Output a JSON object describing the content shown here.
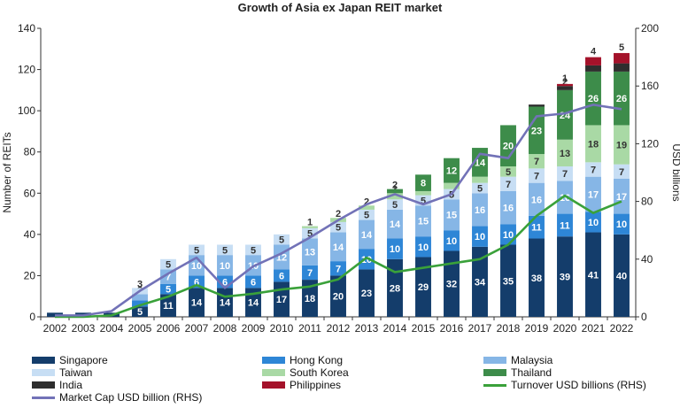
{
  "chart_data": {
    "type": "bar",
    "stacked": true,
    "title": "Growth of Asia ex Japan REIT market",
    "ylabel": "Number of REITs",
    "y2label": "USD billions",
    "ylim": [
      0,
      140
    ],
    "y2lim": [
      0,
      200
    ],
    "yticks": [
      0,
      20,
      40,
      60,
      80,
      100,
      120,
      140
    ],
    "y2ticks": [
      0,
      40,
      80,
      120,
      160,
      200
    ],
    "grid": false,
    "legend_position": "bottom",
    "categories": [
      "2002",
      "2003",
      "2004",
      "2005",
      "2006",
      "2007",
      "2008",
      "2009",
      "2010",
      "2011",
      "2012",
      "2013",
      "2014",
      "2015",
      "2016",
      "2017",
      "2018",
      "2019",
      "2020",
      "2021",
      "2022"
    ],
    "series": [
      {
        "name": "Singapore",
        "color": "#143d6b",
        "values": [
          2,
          2,
          2,
          5,
          11,
          14,
          14,
          14,
          17,
          18,
          20,
          23,
          28,
          29,
          32,
          34,
          35,
          38,
          39,
          41,
          40
        ],
        "labels": [
          "",
          "",
          "",
          "5",
          "11",
          "14",
          "14",
          "14",
          "17",
          "18",
          "20",
          "23",
          "28",
          "29",
          "32",
          "34",
          "35",
          "38",
          "39",
          "41",
          "40"
        ]
      },
      {
        "name": "Hong Kong",
        "color": "#2e86d6",
        "values": [
          0,
          0,
          0,
          3,
          5,
          6,
          6,
          6,
          6,
          7,
          7,
          10,
          10,
          10,
          10,
          10,
          10,
          11,
          11,
          10,
          10
        ],
        "labels": [
          "",
          "",
          "",
          "",
          "5",
          "6",
          "6",
          "6",
          "6",
          "7",
          "7",
          "10",
          "10",
          "10",
          "10",
          "10",
          "10",
          "11",
          "11",
          "10",
          "10"
        ]
      },
      {
        "name": "Malaysia",
        "color": "#86b6e6",
        "values": [
          0,
          0,
          0,
          3,
          7,
          10,
          10,
          10,
          12,
          13,
          14,
          14,
          14,
          15,
          15,
          16,
          16,
          16,
          16,
          17,
          17
        ],
        "labels": [
          "",
          "",
          "",
          "3",
          "7",
          "10",
          "10",
          "10",
          "12",
          "13",
          "14",
          "14",
          "14",
          "15",
          "15",
          "16",
          "16",
          "16",
          "16",
          "17",
          "17"
        ]
      },
      {
        "name": "Taiwan",
        "color": "#c7def4",
        "values": [
          0,
          0,
          0,
          3,
          5,
          5,
          5,
          5,
          5,
          5,
          5,
          5,
          5,
          5,
          5,
          5,
          7,
          7,
          7,
          7,
          7
        ],
        "labels": [
          "",
          "",
          "",
          "3",
          "5",
          "5",
          "5",
          "5",
          "5",
          "5",
          "5",
          "5",
          "5",
          "5",
          "5",
          "5",
          "7",
          "7",
          "7",
          "7",
          "7"
        ]
      },
      {
        "name": "South Korea",
        "color": "#a9d9a5",
        "values": [
          0,
          0,
          0,
          0,
          0,
          0,
          0,
          0,
          0,
          1,
          2,
          2,
          3,
          2,
          3,
          3,
          5,
          7,
          13,
          18,
          19
        ],
        "labels": [
          "",
          "",
          "",
          "",
          "",
          "",
          "",
          "",
          "",
          "1",
          "2",
          "2",
          "3",
          "2",
          "3",
          "3",
          "5",
          "7",
          "13",
          "18",
          "19"
        ]
      },
      {
        "name": "Thailand",
        "color": "#3d8c4a",
        "values": [
          0,
          0,
          0,
          0,
          0,
          0,
          0,
          0,
          0,
          0,
          0,
          0,
          2,
          8,
          12,
          14,
          20,
          23,
          24,
          26,
          26
        ],
        "labels": [
          "",
          "",
          "",
          "",
          "",
          "",
          "",
          "",
          "",
          "",
          "",
          "",
          "2",
          "8",
          "12",
          "14",
          "20",
          "23",
          "24",
          "26",
          "26"
        ]
      },
      {
        "name": "India",
        "color": "#2e2e2e",
        "values": [
          0,
          0,
          0,
          0,
          0,
          0,
          0,
          0,
          0,
          0,
          0,
          0,
          0,
          0,
          0,
          0,
          0,
          1,
          2,
          3,
          4
        ],
        "labels": [
          "",
          "",
          "",
          "",
          "",
          "",
          "",
          "",
          "",
          "",
          "",
          "",
          "",
          "",
          "",
          "",
          "",
          "",
          "2",
          "3",
          ""
        ]
      },
      {
        "name": "Philippines",
        "color": "#a4122a",
        "values": [
          0,
          0,
          0,
          0,
          0,
          0,
          0,
          0,
          0,
          0,
          0,
          0,
          0,
          0,
          0,
          0,
          0,
          0,
          1,
          4,
          5
        ],
        "labels": [
          "",
          "",
          "",
          "",
          "",
          "",
          "",
          "",
          "",
          "",
          "",
          "",
          "",
          "",
          "",
          "",
          "",
          "",
          "1",
          "4",
          "5"
        ]
      }
    ],
    "lines": [
      {
        "name": "Turnover USD billions (RHS)",
        "color": "#3aa13a",
        "axis": "right",
        "values": [
          0,
          0,
          1,
          8,
          14,
          22,
          14,
          16,
          19,
          21,
          26,
          41,
          31,
          34,
          37,
          40,
          50,
          70,
          84,
          72,
          80
        ]
      },
      {
        "name": "Market Cap USD billion (RHS)",
        "color": "#7272b7",
        "axis": "right",
        "values": [
          1,
          1,
          4,
          18,
          30,
          41,
          20,
          35,
          44,
          55,
          67,
          78,
          85,
          78,
          85,
          113,
          110,
          139,
          141,
          147,
          144
        ]
      }
    ]
  },
  "legend": [
    {
      "label": "Singapore",
      "color": "#143d6b",
      "kind": "bar"
    },
    {
      "label": "Hong Kong",
      "color": "#2e86d6",
      "kind": "bar"
    },
    {
      "label": "Malaysia",
      "color": "#86b6e6",
      "kind": "bar"
    },
    {
      "label": "Taiwan",
      "color": "#c7def4",
      "kind": "bar"
    },
    {
      "label": "South Korea",
      "color": "#a9d9a5",
      "kind": "bar"
    },
    {
      "label": "Thailand",
      "color": "#3d8c4a",
      "kind": "bar"
    },
    {
      "label": "India",
      "color": "#2e2e2e",
      "kind": "bar"
    },
    {
      "label": "Philippines",
      "color": "#a4122a",
      "kind": "bar"
    },
    {
      "label": "Turnover USD billions (RHS)",
      "color": "#3aa13a",
      "kind": "line"
    },
    {
      "label": "Market Cap USD billion (RHS)",
      "color": "#7272b7",
      "kind": "line"
    }
  ]
}
